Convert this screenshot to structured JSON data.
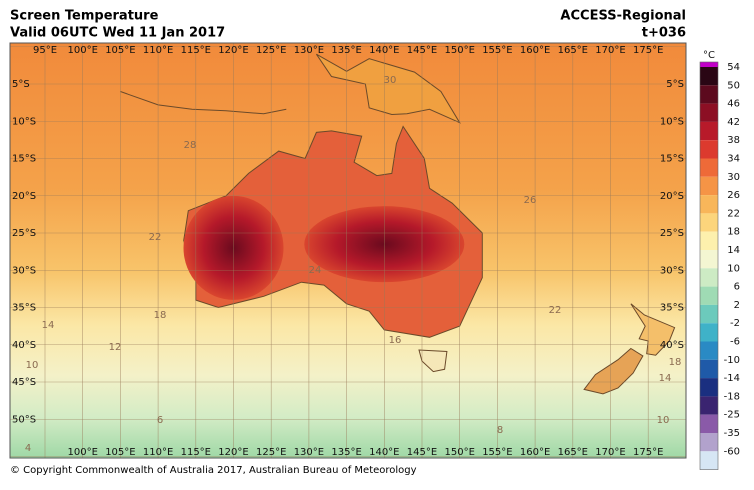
{
  "header": {
    "title": "Screen Temperature",
    "valid": "Valid 06UTC Wed 11 Jan 2017",
    "model": "ACCESS-Regional",
    "lead_time": "t+036"
  },
  "map": {
    "top_longitudes": [
      "95°E",
      "100°E",
      "105°E",
      "110°E",
      "115°E",
      "120°E",
      "125°E",
      "130°E",
      "135°E",
      "140°E",
      "145°E",
      "150°E",
      "155°E",
      "160°E",
      "165°E",
      "170°E",
      "175°E"
    ],
    "bottom_longitudes": [
      "100°E",
      "105°E",
      "110°E",
      "115°E",
      "120°E",
      "125°E",
      "130°E",
      "135°E",
      "140°E",
      "145°E",
      "150°E",
      "155°E",
      "160°E",
      "165°E",
      "170°E",
      "175°E"
    ],
    "left_latitudes": [
      "5°S",
      "10°S",
      "15°S",
      "20°S",
      "25°S",
      "30°S",
      "35°S",
      "40°S",
      "45°S",
      "50°S"
    ],
    "right_latitudes": [
      "5°S",
      "10°S",
      "15°S",
      "20°S",
      "25°S",
      "30°S",
      "35°S",
      "40°S"
    ],
    "contour_labels": [
      "28",
      "26",
      "22",
      "22",
      "24",
      "18",
      "16",
      "14",
      "12",
      "10",
      "18",
      "14",
      "8",
      "6",
      "10",
      "4",
      "30"
    ]
  },
  "colorbar": {
    "unit": "°C",
    "labels": [
      54,
      50,
      46,
      42,
      38,
      34,
      30,
      26,
      22,
      18,
      14,
      10,
      6,
      2,
      -2,
      -6,
      -10,
      -14,
      -18,
      -25,
      -35,
      -60
    ]
  },
  "footer": {
    "copyright": "© Copyright Commonwealth of Australia 2017, Australian Bureau of Meteorology"
  }
}
